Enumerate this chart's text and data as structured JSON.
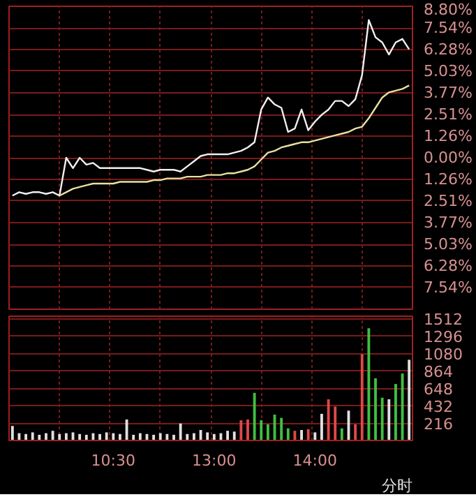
{
  "chart_data": [
    {
      "type": "line",
      "categories": [
        null,
        null,
        null,
        null,
        null,
        null,
        null,
        null,
        null,
        null,
        null,
        null,
        null,
        null,
        null,
        null,
        null,
        null,
        null,
        null,
        null,
        null,
        null,
        null,
        null,
        null,
        null,
        null,
        null,
        null,
        null,
        null,
        null,
        null,
        null,
        null,
        null,
        null,
        null,
        null,
        null,
        null,
        null,
        null,
        null,
        null,
        null,
        null,
        null,
        null,
        null,
        null,
        null,
        null,
        null,
        null,
        null,
        null,
        null,
        null
      ],
      "ylim": [
        -8.8,
        8.8
      ],
      "yticks": [
        {
          "value": 8.8,
          "label": "8.80%"
        },
        {
          "value": 7.54,
          "label": "7.54%"
        },
        {
          "value": 6.28,
          "label": "6.28%"
        },
        {
          "value": 5.03,
          "label": "5.03%"
        },
        {
          "value": 3.77,
          "label": "3.77%"
        },
        {
          "value": 2.51,
          "label": "2.51%"
        },
        {
          "value": 1.26,
          "label": "1.26%"
        },
        {
          "value": 0,
          "label": "0.00%"
        },
        {
          "value": -1.26,
          "label": "1.26%"
        },
        {
          "value": -2.51,
          "label": "2.51%"
        },
        {
          "value": -3.77,
          "label": "3.77%"
        },
        {
          "value": -5.03,
          "label": "5.03%"
        },
        {
          "value": -6.28,
          "label": "6.28%"
        },
        {
          "value": -7.54,
          "label": "7.54%"
        }
      ],
      "tick_labels": "y",
      "grid": true,
      "series": [
        {
          "color": "#f0f0f0",
          "values": [
            -2.2,
            -2.0,
            -2.1,
            -2.0,
            -2.0,
            -2.1,
            -2.0,
            -2.2,
            0,
            -0.6,
            0,
            -0.4,
            -0.3,
            -0.6,
            -0.6,
            -0.6,
            -0.6,
            -0.6,
            -0.6,
            -0.6,
            -0.7,
            -0.8,
            -0.7,
            -0.7,
            -0.7,
            -0.8,
            -0.5,
            -0.2,
            0.1,
            0.2,
            0.2,
            0.2,
            0.2,
            0.3,
            0.4,
            0.6,
            0.9,
            2.8,
            3.5,
            3.1,
            2.9,
            1.5,
            1.7,
            2.8,
            1.6,
            2.1,
            2.5,
            2.8,
            3.3,
            3.3,
            3.0,
            3.4,
            4.8,
            8.0,
            7.0,
            6.7,
            6.0,
            6.7,
            6.9,
            6.3
          ]
        },
        {
          "color": "#e8e0a0",
          "values": [
            null,
            null,
            null,
            null,
            null,
            null,
            null,
            -2.2,
            -2.0,
            -1.8,
            -1.7,
            -1.6,
            -1.5,
            -1.5,
            -1.5,
            -1.5,
            -1.4,
            -1.4,
            -1.4,
            -1.4,
            -1.4,
            -1.3,
            -1.3,
            -1.2,
            -1.2,
            -1.2,
            -1.1,
            -1.1,
            -1.1,
            -1.0,
            -1.0,
            -1.0,
            -0.9,
            -0.9,
            -0.8,
            -0.7,
            -0.5,
            -0.1,
            0.3,
            0.4,
            0.6,
            0.7,
            0.8,
            0.9,
            0.9,
            1.0,
            1.1,
            1.2,
            1.3,
            1.4,
            1.5,
            1.7,
            1.8,
            2.3,
            2.9,
            3.5,
            3.8,
            3.9,
            4.0,
            4.2
          ]
        }
      ]
    },
    {
      "type": "bar",
      "categories": [
        null,
        null,
        null,
        null,
        null,
        null,
        null,
        null,
        null,
        null,
        null,
        null,
        null,
        null,
        null,
        "10:30",
        null,
        null,
        null,
        null,
        null,
        null,
        null,
        null,
        null,
        null,
        null,
        null,
        null,
        null,
        "13:00",
        null,
        null,
        null,
        null,
        null,
        null,
        null,
        null,
        null,
        null,
        null,
        null,
        null,
        null,
        "14:00",
        null,
        null,
        null,
        null,
        null,
        null,
        null,
        null,
        null,
        null,
        null,
        null,
        null,
        null
      ],
      "ylim": [
        0,
        1540
      ],
      "yticks": [
        216,
        432,
        648,
        864,
        1080,
        1296,
        1512
      ],
      "grid": true,
      "annotations": [
        "分时"
      ],
      "values": [
        180,
        90,
        80,
        100,
        70,
        90,
        120,
        80,
        90,
        100,
        80,
        70,
        90,
        80,
        100,
        90,
        80,
        260,
        70,
        90,
        80,
        70,
        90,
        80,
        70,
        210,
        80,
        90,
        130,
        100,
        80,
        90,
        120,
        110,
        250,
        260,
        590,
        250,
        200,
        320,
        280,
        150,
        120,
        130,
        140,
        100,
        330,
        510,
        420,
        150,
        370,
        200,
        1070,
        1390,
        770,
        530,
        510,
        700,
        830,
        1000
      ],
      "colors": [
        "#e0e0e0",
        "#e0e0e0",
        "#e0e0e0",
        "#e0e0e0",
        "#e0e0e0",
        "#e0e0e0",
        "#e0e0e0",
        "#e0e0e0",
        "#e0e0e0",
        "#e0e0e0",
        "#e0e0e0",
        "#e0e0e0",
        "#e0e0e0",
        "#e0e0e0",
        "#e0e0e0",
        "#e0e0e0",
        "#e0e0e0",
        "#e0e0e0",
        "#e0e0e0",
        "#e0e0e0",
        "#e0e0e0",
        "#e0e0e0",
        "#e0e0e0",
        "#e0e0e0",
        "#e0e0e0",
        "#e0e0e0",
        "#e0e0e0",
        "#e0e0e0",
        "#e0e0e0",
        "#e0e0e0",
        "#e0e0e0",
        "#e0e0e0",
        "#e0e0e0",
        "#e0e0e0",
        "#e04848",
        "#e04848",
        "#40c040",
        "#40c040",
        "#40c040",
        "#40c040",
        "#40c040",
        "#40c040",
        "#e04848",
        "#e0e0e0",
        "#e04848",
        "#e0e0e0",
        "#e0e0e0",
        "#e04848",
        "#e04848",
        "#40c040",
        "#e0e0e0",
        "#e04848",
        "#e04848",
        "#40c040",
        "#40c040",
        "#40c040",
        "#e0e0e0",
        "#40c040",
        "#40c040",
        "#e0e0e0"
      ]
    }
  ]
}
